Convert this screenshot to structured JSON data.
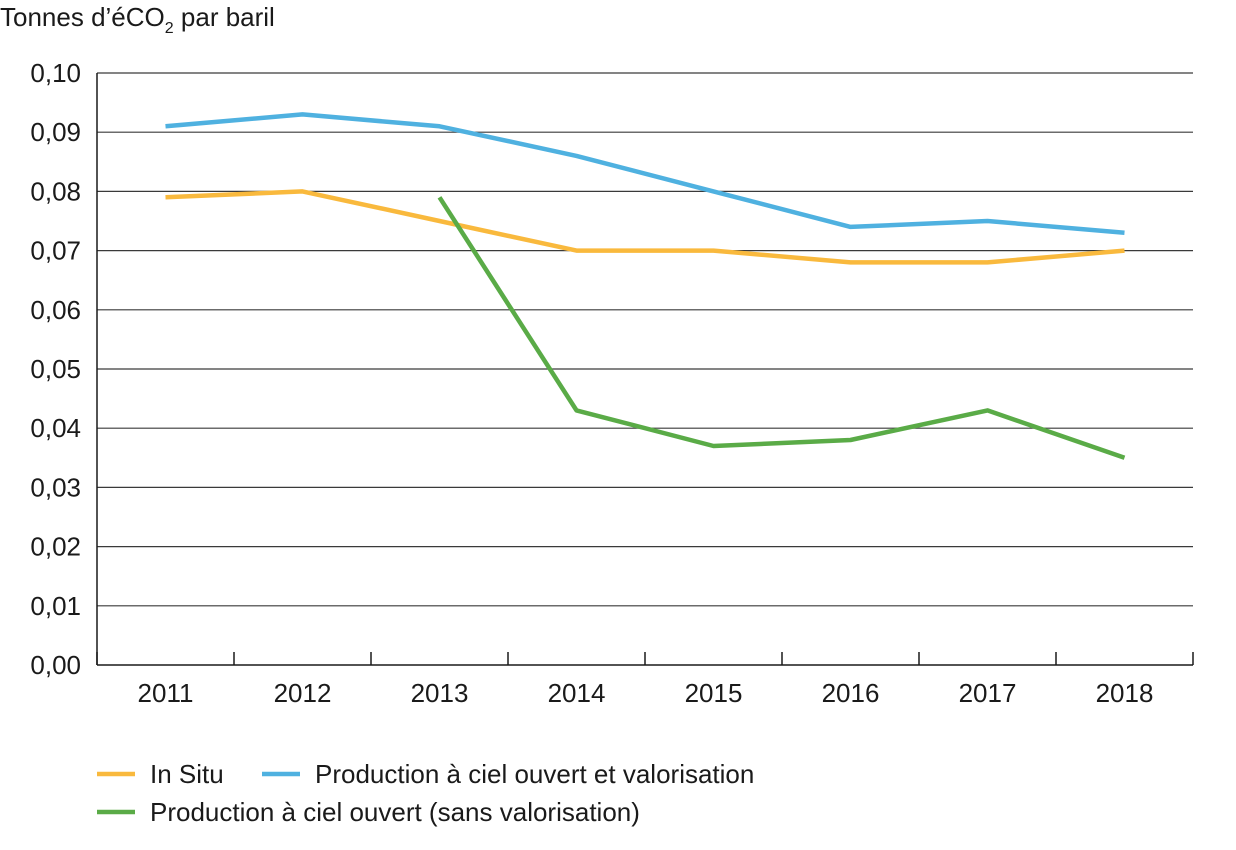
{
  "chart_data": {
    "type": "line",
    "ylabel_prefix": "Tonnes d’éCO",
    "ylabel_subscript": "2",
    "ylabel_suffix": " par baril",
    "xlabel": "",
    "categories": [
      "2011",
      "2012",
      "2013",
      "2014",
      "2015",
      "2016",
      "2017",
      "2018"
    ],
    "ylim": [
      0,
      0.1
    ],
    "yticks": [
      0.0,
      0.01,
      0.02,
      0.03,
      0.04,
      0.05,
      0.06,
      0.07,
      0.08,
      0.09,
      0.1
    ],
    "ytick_labels": [
      "0,00",
      "0,01",
      "0,02",
      "0,03",
      "0,04",
      "0,05",
      "0,06",
      "0,07",
      "0,08",
      "0,09",
      "0,10"
    ],
    "grid": "horizontal",
    "legend_position": "bottom-left",
    "series": [
      {
        "name": "In Situ",
        "color": "#f9b93d",
        "values": [
          0.079,
          0.08,
          0.075,
          0.07,
          0.07,
          0.068,
          0.068,
          0.07
        ]
      },
      {
        "name": "Production à ciel ouvert et valorisation",
        "color": "#4fb1e0",
        "values": [
          0.091,
          0.093,
          0.091,
          0.086,
          0.08,
          0.074,
          0.075,
          0.073
        ]
      },
      {
        "name": "Production à ciel ouvert (sans valorisation)",
        "color": "#5aab47",
        "values": [
          null,
          null,
          0.079,
          0.043,
          0.037,
          0.038,
          0.043,
          0.035
        ]
      }
    ]
  }
}
